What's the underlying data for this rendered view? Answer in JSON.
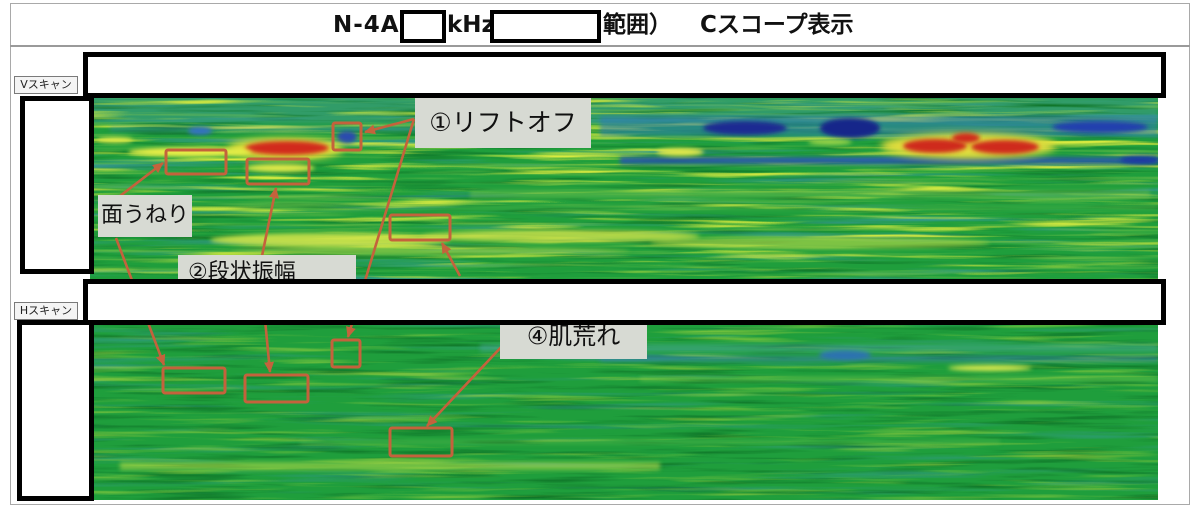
{
  "title": {
    "model": "N-4A",
    "unit": "kHz",
    "range_suffix": "範囲）",
    "display": "Cスコープ表示"
  },
  "scan_tabs": {
    "v_scan": "Vスキャン",
    "h_scan": "Hスキャン"
  },
  "annotations": {
    "lift_off": "①リフトオフ",
    "surface_waviness": "面うねり",
    "item_2": "②段状振幅",
    "surface_roughness": "④肌荒れ"
  },
  "colors": {
    "annotation_marker": "#c4623c",
    "redaction_border": "#000000",
    "label_background": "#d7dad3",
    "scan_base": "#1f9e3c"
  }
}
